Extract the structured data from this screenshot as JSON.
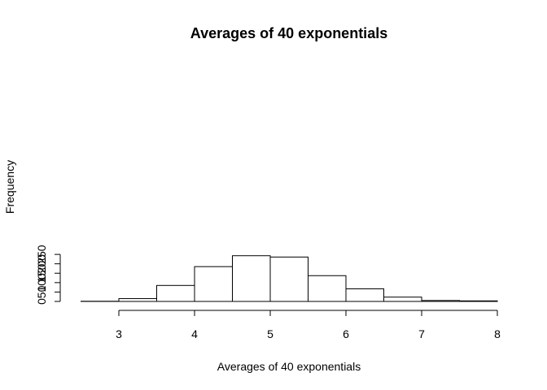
{
  "chart_data": {
    "type": "bar",
    "title": "Averages of 40 exponentials",
    "xlabel": "Averages of 40 exponentials",
    "ylabel": "Frequency",
    "bins": [
      {
        "start": 2.5,
        "end": 3.0,
        "count": 1
      },
      {
        "start": 3.0,
        "end": 3.5,
        "count": 15
      },
      {
        "start": 3.5,
        "end": 4.0,
        "count": 85
      },
      {
        "start": 4.0,
        "end": 4.5,
        "count": 185
      },
      {
        "start": 4.5,
        "end": 5.0,
        "count": 243
      },
      {
        "start": 5.0,
        "end": 5.5,
        "count": 236
      },
      {
        "start": 5.5,
        "end": 6.0,
        "count": 137
      },
      {
        "start": 6.0,
        "end": 6.5,
        "count": 67
      },
      {
        "start": 6.5,
        "end": 7.0,
        "count": 23
      },
      {
        "start": 7.0,
        "end": 7.5,
        "count": 5
      },
      {
        "start": 7.5,
        "end": 8.0,
        "count": 3
      }
    ],
    "xticks": [
      {
        "value": 3,
        "label": "3"
      },
      {
        "value": 4,
        "label": "4"
      },
      {
        "value": 5,
        "label": "5"
      },
      {
        "value": 6,
        "label": "6"
      },
      {
        "value": 7,
        "label": "7"
      },
      {
        "value": 8,
        "label": "8"
      }
    ],
    "yticks": [
      {
        "value": 0,
        "label": "0"
      },
      {
        "value": 50,
        "label": "50"
      },
      {
        "value": 100,
        "label": "100"
      },
      {
        "value": 150,
        "label": "150"
      },
      {
        "value": 200,
        "label": "200"
      },
      {
        "value": 250,
        "label": "250"
      }
    ],
    "xlim": [
      2.5,
      8
    ],
    "ylim": [
      0,
      250
    ],
    "grid": false,
    "colors": {
      "bar_fill": "#ffffff",
      "bar_stroke": "#000000"
    }
  }
}
